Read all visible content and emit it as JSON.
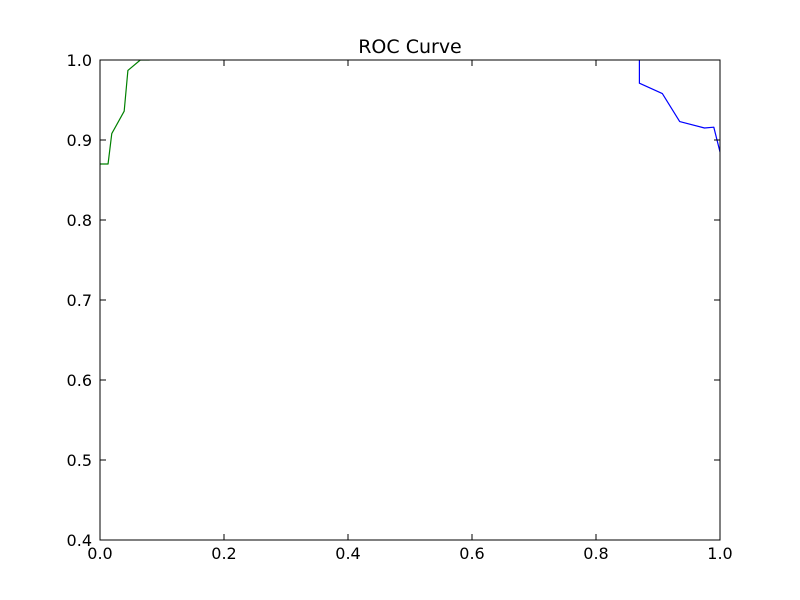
{
  "chart_data": {
    "type": "line",
    "title": "ROC Curve",
    "xlabel": "",
    "ylabel": "",
    "xlim": [
      0.0,
      1.0
    ],
    "ylim": [
      0.4,
      1.0
    ],
    "x_ticks": [
      0.0,
      0.2,
      0.4,
      0.6,
      0.8,
      1.0
    ],
    "x_tick_labels": [
      "0.0",
      "0.2",
      "0.4",
      "0.6",
      "0.8",
      "1.0"
    ],
    "y_ticks": [
      0.4,
      0.5,
      0.6,
      0.7,
      0.8,
      0.9,
      1.0
    ],
    "y_tick_labels": [
      "0.4",
      "0.5",
      "0.6",
      "0.7",
      "0.8",
      "0.9",
      "1.0"
    ],
    "grid": false,
    "legend": "none",
    "series": [
      {
        "color": "#008000",
        "x": [
          0.0,
          0.013,
          0.019,
          0.039,
          0.045,
          0.065,
          0.08
        ],
        "y": [
          0.87,
          0.87,
          0.908,
          0.936,
          0.987,
          1.0,
          1.0
        ]
      },
      {
        "color": "#0000ff",
        "x": [
          0.87,
          0.87,
          0.907,
          0.935,
          0.975,
          0.99,
          1.0
        ],
        "y": [
          1.0,
          0.971,
          0.958,
          0.923,
          0.915,
          0.916,
          0.885
        ]
      }
    ]
  }
}
